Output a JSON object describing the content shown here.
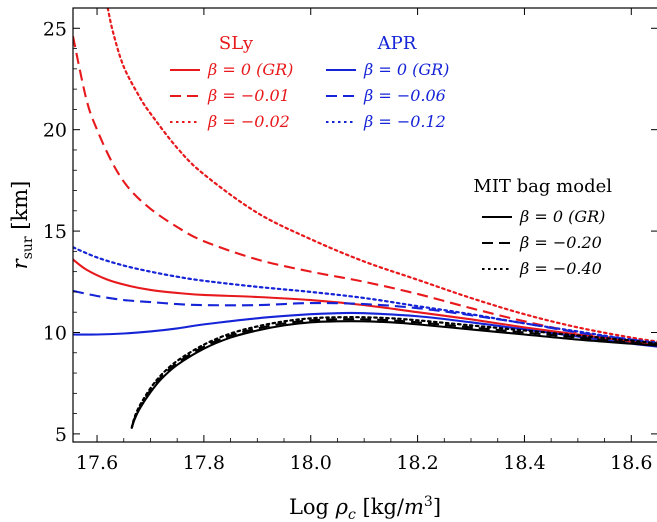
{
  "chart_data": {
    "type": "line",
    "title": "",
    "xlabel": "Log ρ_c [kg/m^3]",
    "ylabel": "r_sur [km]",
    "xlim": [
      17.555,
      18.65
    ],
    "ylim": [
      4.6,
      26.0
    ],
    "xticks": [
      17.6,
      17.8,
      18.0,
      18.2,
      18.4,
      18.6
    ],
    "yticks": [
      5,
      10,
      15,
      20,
      25
    ],
    "xtick_labels": [
      "17.6",
      "17.8",
      "18.0",
      "18.2",
      "18.4",
      "18.6"
    ],
    "ytick_labels": [
      "5",
      "10",
      "15",
      "20",
      "25"
    ],
    "grid": false,
    "colors": {
      "SLy": "#e8191c",
      "APR": "#1524d6",
      "MIT": "#000000"
    },
    "legend_groups": [
      {
        "heading": "SLy",
        "placement": "top-center",
        "entries": [
          {
            "label": "β = 0 (GR)",
            "style": "solid"
          },
          {
            "label": "β = −0.01",
            "style": "dashed"
          },
          {
            "label": "β = −0.02",
            "style": "dotted"
          }
        ]
      },
      {
        "heading": "APR",
        "placement": "top-right",
        "entries": [
          {
            "label": "β = 0 (GR)",
            "style": "solid"
          },
          {
            "label": "β = −0.06",
            "style": "dashed"
          },
          {
            "label": "β = −0.12",
            "style": "dotted"
          }
        ]
      },
      {
        "heading": "MIT bag model",
        "placement": "right",
        "entries": [
          {
            "label": "β = 0 (GR)",
            "style": "solid"
          },
          {
            "label": "β = −0.20",
            "style": "dashed"
          },
          {
            "label": "β = −0.40",
            "style": "dotted"
          }
        ]
      }
    ],
    "series": [
      {
        "group": "SLy",
        "beta": "0 (GR)",
        "color": "#e8191c",
        "style": "solid",
        "x": [
          17.555,
          17.58,
          17.62,
          17.66,
          17.7,
          17.75,
          17.8,
          17.9,
          18.0,
          18.1,
          18.2,
          18.3,
          18.4,
          18.5,
          18.6,
          18.65
        ],
        "y": [
          13.6,
          13.1,
          12.6,
          12.3,
          12.1,
          11.95,
          11.85,
          11.75,
          11.6,
          11.35,
          11.0,
          10.65,
          10.25,
          9.9,
          9.55,
          9.35
        ]
      },
      {
        "group": "SLy",
        "beta": "−0.01",
        "color": "#e8191c",
        "style": "dashed",
        "x": [
          17.555,
          17.58,
          17.6,
          17.63,
          17.66,
          17.7,
          17.75,
          17.8,
          17.9,
          18.0,
          18.1,
          18.2,
          18.3,
          18.4,
          18.5,
          18.6,
          18.65
        ],
        "y": [
          24.6,
          21.5,
          20.0,
          18.3,
          17.1,
          16.1,
          15.2,
          14.5,
          13.6,
          13.0,
          12.5,
          11.9,
          11.2,
          10.55,
          10.0,
          9.6,
          9.45
        ]
      },
      {
        "group": "SLy",
        "beta": "−0.02",
        "color": "#e8191c",
        "style": "dotted",
        "x": [
          17.62,
          17.63,
          17.65,
          17.68,
          17.7,
          17.75,
          17.8,
          17.9,
          18.0,
          18.1,
          18.2,
          18.3,
          18.4,
          18.5,
          18.6,
          18.65
        ],
        "y": [
          26.0,
          24.8,
          23.1,
          21.6,
          20.8,
          19.1,
          17.8,
          15.9,
          14.6,
          13.5,
          12.6,
          11.7,
          10.9,
          10.25,
          9.75,
          9.55
        ]
      },
      {
        "group": "APR",
        "beta": "0 (GR)",
        "color": "#1524d6",
        "style": "solid",
        "x": [
          17.555,
          17.6,
          17.65,
          17.7,
          17.75,
          17.8,
          17.9,
          18.0,
          18.05,
          18.1,
          18.2,
          18.3,
          18.4,
          18.5,
          18.6,
          18.65
        ],
        "y": [
          9.9,
          9.9,
          9.95,
          10.05,
          10.2,
          10.4,
          10.7,
          10.9,
          10.95,
          10.95,
          10.8,
          10.5,
          10.15,
          9.8,
          9.45,
          9.3
        ]
      },
      {
        "group": "APR",
        "beta": "−0.06",
        "color": "#1524d6",
        "style": "dashed",
        "x": [
          17.555,
          17.6,
          17.65,
          17.7,
          17.75,
          17.8,
          17.9,
          18.0,
          18.1,
          18.2,
          18.3,
          18.4,
          18.5,
          18.6,
          18.65
        ],
        "y": [
          12.05,
          11.8,
          11.6,
          11.5,
          11.4,
          11.35,
          11.35,
          11.45,
          11.4,
          11.2,
          10.85,
          10.45,
          10.0,
          9.65,
          9.45
        ]
      },
      {
        "group": "APR",
        "beta": "−0.12",
        "color": "#1524d6",
        "style": "dotted",
        "x": [
          17.555,
          17.6,
          17.65,
          17.7,
          17.75,
          17.8,
          17.9,
          18.0,
          18.1,
          18.2,
          18.3,
          18.4,
          18.5,
          18.6,
          18.65
        ],
        "y": [
          14.2,
          13.7,
          13.3,
          13.0,
          12.75,
          12.55,
          12.25,
          12.0,
          11.7,
          11.3,
          10.9,
          10.45,
          10.05,
          9.65,
          9.5
        ]
      },
      {
        "group": "MIT bag model",
        "beta": "0 (GR)",
        "color": "#000000",
        "style": "solid",
        "x": [
          17.665,
          17.67,
          17.68,
          17.7,
          17.72,
          17.75,
          17.8,
          17.85,
          17.9,
          17.95,
          18.0,
          18.05,
          18.1,
          18.15,
          18.2,
          18.3,
          18.4,
          18.5,
          18.6,
          18.65
        ],
        "y": [
          5.3,
          5.7,
          6.25,
          7.05,
          7.7,
          8.4,
          9.2,
          9.75,
          10.1,
          10.35,
          10.5,
          10.55,
          10.55,
          10.5,
          10.4,
          10.15,
          9.9,
          9.65,
          9.45,
          9.35
        ]
      },
      {
        "group": "MIT bag model",
        "beta": "−0.20",
        "color": "#000000",
        "style": "dashed",
        "x": [
          17.665,
          17.67,
          17.68,
          17.7,
          17.72,
          17.75,
          17.8,
          17.85,
          17.9,
          17.95,
          18.0,
          18.05,
          18.1,
          18.15,
          18.2,
          18.3,
          18.4,
          18.5,
          18.6,
          18.65
        ],
        "y": [
          5.3,
          5.75,
          6.3,
          7.15,
          7.8,
          8.5,
          9.3,
          9.85,
          10.2,
          10.45,
          10.6,
          10.65,
          10.65,
          10.6,
          10.5,
          10.25,
          10.0,
          9.75,
          9.5,
          9.4
        ]
      },
      {
        "group": "MIT bag model",
        "beta": "−0.40",
        "color": "#000000",
        "style": "dotted",
        "x": [
          17.665,
          17.67,
          17.68,
          17.7,
          17.72,
          17.75,
          17.8,
          17.85,
          17.9,
          17.95,
          18.0,
          18.05,
          18.1,
          18.15,
          18.2,
          18.3,
          18.4,
          18.5,
          18.6,
          18.65
        ],
        "y": [
          5.3,
          5.8,
          6.4,
          7.25,
          7.9,
          8.6,
          9.4,
          9.95,
          10.3,
          10.55,
          10.7,
          10.75,
          10.75,
          10.7,
          10.6,
          10.35,
          10.1,
          9.85,
          9.6,
          9.45
        ]
      }
    ]
  }
}
